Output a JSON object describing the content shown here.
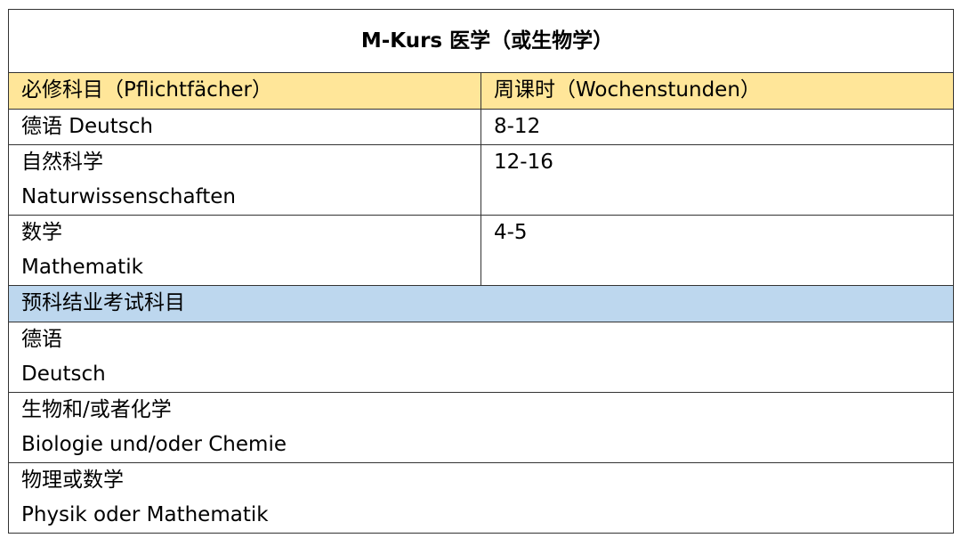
{
  "title": "M-Kurs  医学（或生物学）",
  "header": {
    "col1": "必修科目（Pflichtfächer）",
    "col2": "周课时（Wochenstunden）"
  },
  "required_subjects": [
    {
      "zh": "德语 Deutsch",
      "de": "",
      "hours": "8-12"
    },
    {
      "zh": "自然科学",
      "de": "Naturwissenschaften",
      "hours": "12-16"
    },
    {
      "zh": "数学",
      "de": "Mathematik",
      "hours": "4-5"
    }
  ],
  "exam_header": "预科结业考试科目",
  "exam_subjects": [
    {
      "zh": "德语",
      "de": "Deutsch"
    },
    {
      "zh": "生物和/或者化学",
      "de": "Biologie und/oder Chemie"
    },
    {
      "zh": "物理或数学",
      "de": "Physik oder Mathematik"
    }
  ],
  "colors": {
    "header_bg": "#FFE699",
    "exam_header_bg": "#BDD7EE"
  }
}
